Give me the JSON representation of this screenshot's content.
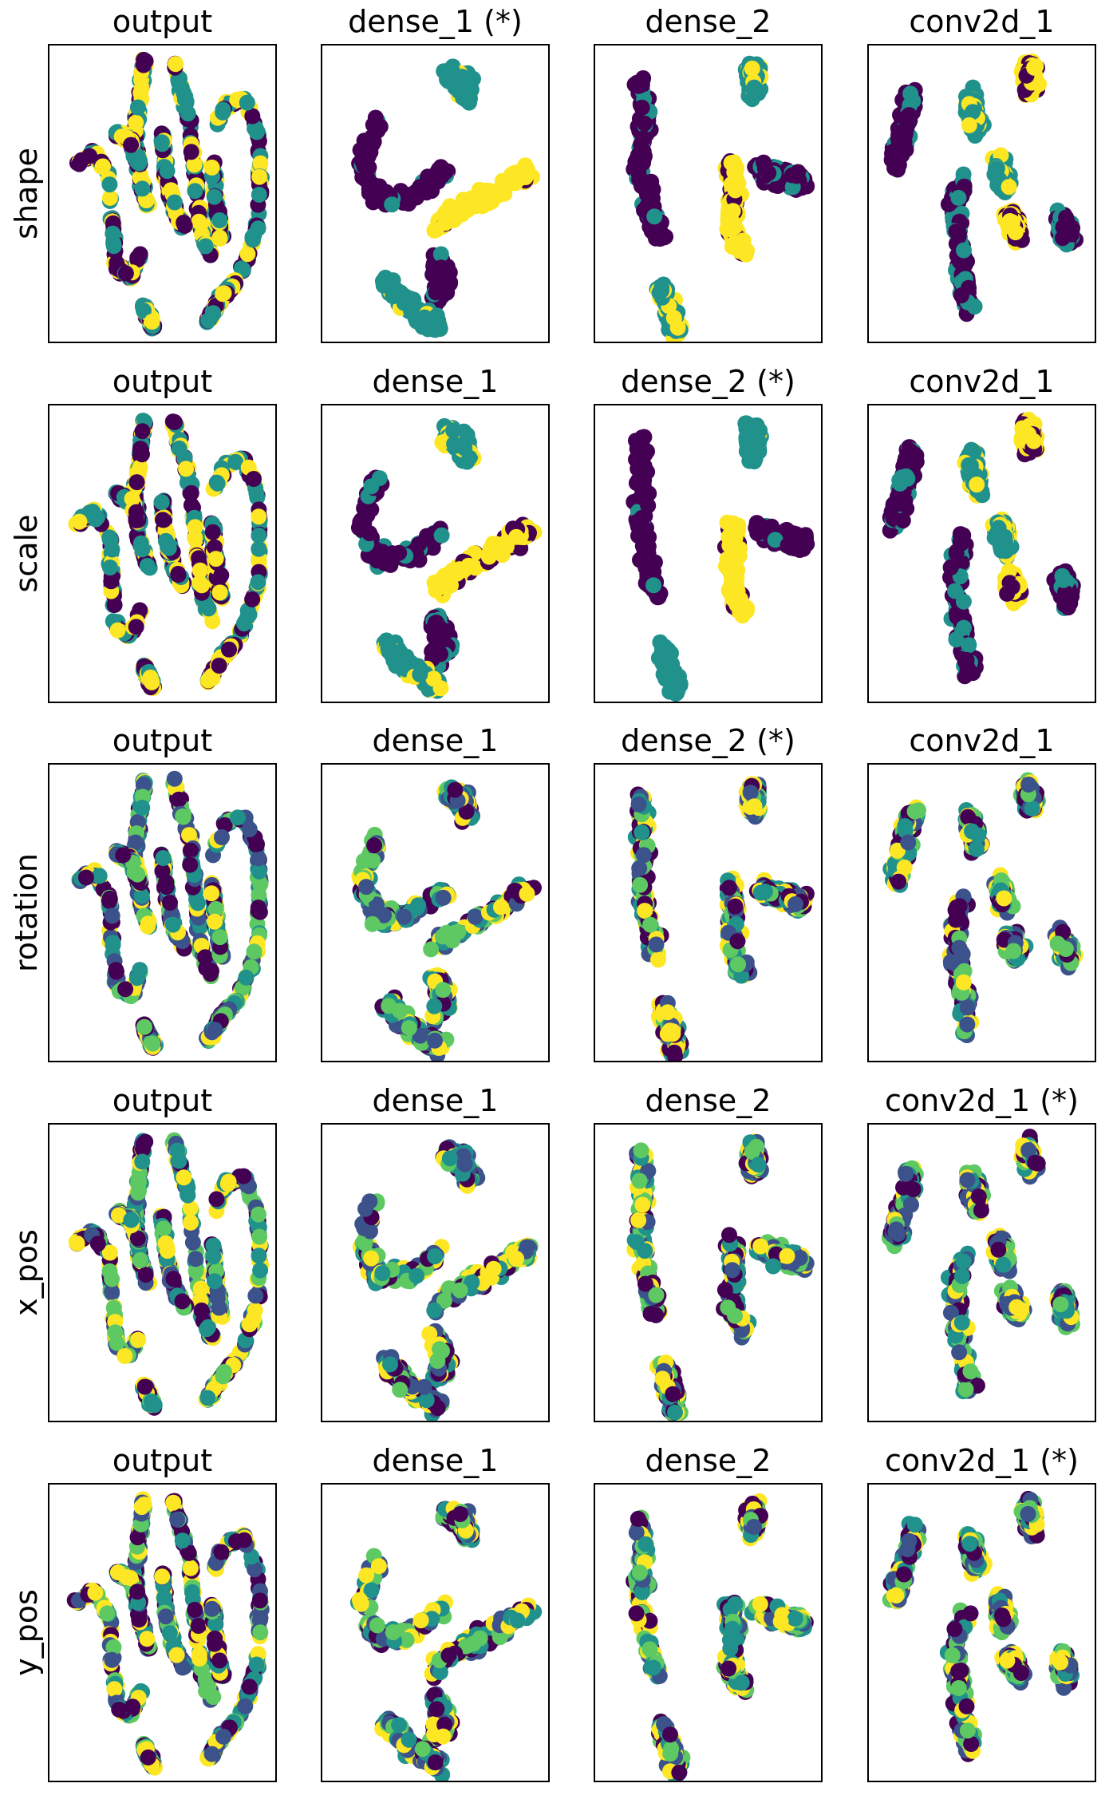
{
  "figure": {
    "row_labels": [
      "shape",
      "scale",
      "rotation",
      "x_pos",
      "y_pos"
    ],
    "colormap": "viridis",
    "palette": [
      "#440154",
      "#3b528b",
      "#21918c",
      "#5ec962",
      "#fde725"
    ]
  },
  "chart_data": [
    {
      "type": "scatter",
      "row": "shape",
      "title": "output",
      "embedding": "output",
      "classes": 3,
      "axes": "off"
    },
    {
      "type": "scatter",
      "row": "shape",
      "title": "dense_1 (*)",
      "embedding": "dense_1",
      "classes": 3,
      "axes": "off"
    },
    {
      "type": "scatter",
      "row": "shape",
      "title": "dense_2",
      "embedding": "dense_2",
      "classes": 3,
      "axes": "off"
    },
    {
      "type": "scatter",
      "row": "shape",
      "title": "conv2d_1",
      "embedding": "conv2d_1",
      "classes": 3,
      "axes": "off"
    },
    {
      "type": "scatter",
      "row": "scale",
      "title": "output",
      "embedding": "output",
      "classes": 3,
      "axes": "off"
    },
    {
      "type": "scatter",
      "row": "scale",
      "title": "dense_1",
      "embedding": "dense_1",
      "classes": 3,
      "axes": "off"
    },
    {
      "type": "scatter",
      "row": "scale",
      "title": "dense_2 (*)",
      "embedding": "dense_2",
      "classes": 3,
      "axes": "off"
    },
    {
      "type": "scatter",
      "row": "scale",
      "title": "conv2d_1",
      "embedding": "conv2d_1",
      "classes": 3,
      "axes": "off"
    },
    {
      "type": "scatter",
      "row": "rotation",
      "title": "output",
      "embedding": "output",
      "classes": 5,
      "axes": "off"
    },
    {
      "type": "scatter",
      "row": "rotation",
      "title": "dense_1",
      "embedding": "dense_1",
      "classes": 5,
      "axes": "off"
    },
    {
      "type": "scatter",
      "row": "rotation",
      "title": "dense_2 (*)",
      "embedding": "dense_2",
      "classes": 5,
      "axes": "off"
    },
    {
      "type": "scatter",
      "row": "rotation",
      "title": "conv2d_1",
      "embedding": "conv2d_1",
      "classes": 5,
      "axes": "off"
    },
    {
      "type": "scatter",
      "row": "x_pos",
      "title": "output",
      "embedding": "output",
      "classes": 5,
      "axes": "off"
    },
    {
      "type": "scatter",
      "row": "x_pos",
      "title": "dense_1",
      "embedding": "dense_1",
      "classes": 5,
      "axes": "off"
    },
    {
      "type": "scatter",
      "row": "x_pos",
      "title": "dense_2",
      "embedding": "dense_2",
      "classes": 5,
      "axes": "off"
    },
    {
      "type": "scatter",
      "row": "x_pos",
      "title": "conv2d_1 (*)",
      "embedding": "conv2d_1",
      "classes": 5,
      "axes": "off"
    },
    {
      "type": "scatter",
      "row": "y_pos",
      "title": "output",
      "embedding": "output",
      "classes": 5,
      "axes": "off"
    },
    {
      "type": "scatter",
      "row": "y_pos",
      "title": "dense_1",
      "embedding": "dense_1",
      "classes": 5,
      "axes": "off"
    },
    {
      "type": "scatter",
      "row": "y_pos",
      "title": "dense_2",
      "embedding": "dense_2",
      "classes": 5,
      "axes": "off"
    },
    {
      "type": "scatter",
      "row": "y_pos",
      "title": "conv2d_1 (*)",
      "embedding": "conv2d_1",
      "classes": 5,
      "axes": "off"
    }
  ]
}
